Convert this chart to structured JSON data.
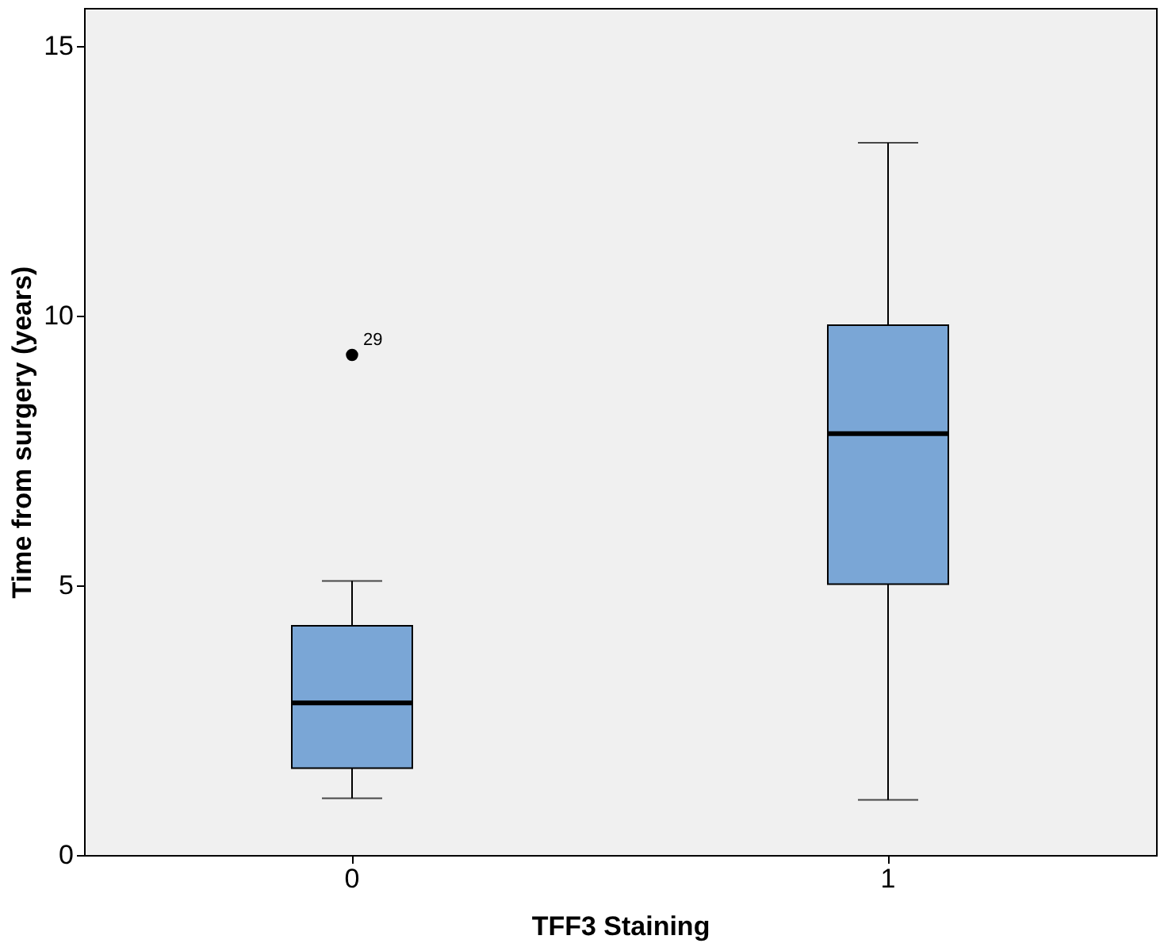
{
  "chart_data": {
    "type": "box",
    "xlabel": "TFF3 Staining",
    "ylabel": "Time from surgery (years)",
    "categories": [
      "0",
      "1"
    ],
    "series": [
      {
        "color": "#7aa6d6",
        "boxes": [
          {
            "low": 1.05,
            "q1": 1.61,
            "median": 2.82,
            "q3": 4.25,
            "high": 5.08,
            "outliers": [
              9.27
            ]
          },
          {
            "low": 1.02,
            "q1": 5.02,
            "median": 7.81,
            "q3": 9.82,
            "high": 13.2
          }
        ]
      }
    ],
    "ylim": [
      0,
      15.7
    ],
    "yticks": [
      0,
      5,
      10,
      15
    ],
    "grid": false,
    "annotations": [
      "29"
    ]
  }
}
